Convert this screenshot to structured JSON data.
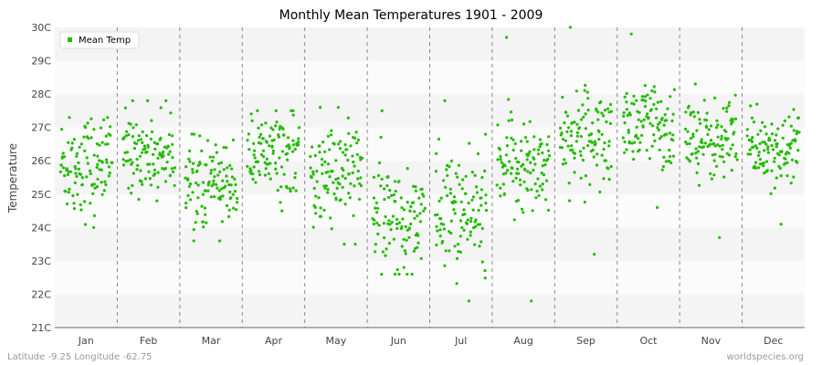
{
  "chart_data": {
    "type": "scatter",
    "title": "Monthly Mean Temperatures 1901 - 2009",
    "ylabel": "Temperature",
    "xlabel": "",
    "categories": [
      "Jan",
      "Feb",
      "Mar",
      "Apr",
      "May",
      "Jun",
      "Jul",
      "Aug",
      "Sep",
      "Oct",
      "Nov",
      "Dec"
    ],
    "y_ticks": [
      "21C",
      "22C",
      "23C",
      "24C",
      "25C",
      "26C",
      "27C",
      "28C",
      "29C",
      "30C"
    ],
    "ylim": [
      21,
      30
    ],
    "grid": "horizontal bands, dashed month separators",
    "legend": {
      "placement": "top-left",
      "entries": [
        "Mean Temp"
      ]
    },
    "series": [
      {
        "name": "Mean Temp",
        "color": "#22bb00",
        "summary_by_month": [
          {
            "month": "Jan",
            "mean": 25.9,
            "sd": 0.75,
            "min": 24.0,
            "max": 27.3
          },
          {
            "month": "Feb",
            "mean": 26.3,
            "sd": 0.6,
            "min": 24.8,
            "max": 27.8
          },
          {
            "month": "Mar",
            "mean": 25.4,
            "sd": 0.6,
            "min": 23.6,
            "max": 26.8
          },
          {
            "month": "Apr",
            "mean": 26.2,
            "sd": 0.6,
            "min": 24.5,
            "max": 27.5
          },
          {
            "month": "May",
            "mean": 25.6,
            "sd": 0.8,
            "min": 23.5,
            "max": 27.6
          },
          {
            "month": "Jun",
            "mean": 24.4,
            "sd": 0.75,
            "min": 22.6,
            "max": 27.5
          },
          {
            "month": "Jul",
            "mean": 24.5,
            "sd": 0.9,
            "min": 21.8,
            "max": 27.8
          },
          {
            "month": "Aug",
            "mean": 25.9,
            "sd": 0.8,
            "min": 21.8,
            "max": 29.7
          },
          {
            "month": "Sep",
            "mean": 26.8,
            "sd": 0.7,
            "min": 23.2,
            "max": 30.0
          },
          {
            "month": "Oct",
            "mean": 27.0,
            "sd": 0.7,
            "min": 24.6,
            "max": 29.8
          },
          {
            "month": "Nov",
            "mean": 26.6,
            "sd": 0.6,
            "min": 23.7,
            "max": 28.3
          },
          {
            "month": "Dec",
            "mean": 26.4,
            "sd": 0.55,
            "min": 24.1,
            "max": 27.7
          }
        ]
      }
    ]
  },
  "footer": {
    "location": "Latitude -9.25 Longitude -62.75",
    "source": "worldspecies.org"
  }
}
